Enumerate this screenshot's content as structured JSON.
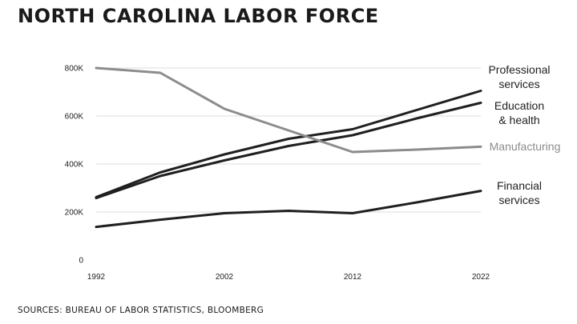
{
  "title": "NORTH CAROLINA LABOR FORCE",
  "source": "SOURCES: BUREAU OF LABOR STATISTICS, BLOOMBERG",
  "chart_data": {
    "type": "line",
    "x": [
      1992,
      1997,
      2002,
      2007,
      2012,
      2017,
      2022
    ],
    "xticks": [
      1992,
      2002,
      2012,
      2022
    ],
    "xlim": [
      1992,
      2022
    ],
    "ylim": [
      0,
      800000
    ],
    "yticks": [
      0,
      200000,
      400000,
      600000,
      800000
    ],
    "ytick_labels": [
      "0",
      "200K",
      "400K",
      "600K",
      "800K"
    ],
    "grid": "horizontal",
    "series": [
      {
        "name": "Professional services",
        "label_lines": [
          "Professional",
          "services"
        ],
        "color": "#1f1f1f",
        "values": [
          262000,
          365000,
          440000,
          505000,
          545000,
          625000,
          705000
        ]
      },
      {
        "name": "Education & health",
        "label_lines": [
          "Education",
          "& health"
        ],
        "color": "#1f1f1f",
        "values": [
          258000,
          350000,
          415000,
          475000,
          520000,
          590000,
          655000
        ]
      },
      {
        "name": "Manufacturing",
        "label_lines": [
          "Manufacturing"
        ],
        "color": "#8c8c8c",
        "values": [
          800000,
          780000,
          630000,
          540000,
          450000,
          460000,
          472000
        ]
      },
      {
        "name": "Financial services",
        "label_lines": [
          "Financial",
          "services"
        ],
        "color": "#1f1f1f",
        "values": [
          138000,
          168000,
          195000,
          205000,
          195000,
          240000,
          288000
        ]
      }
    ]
  }
}
